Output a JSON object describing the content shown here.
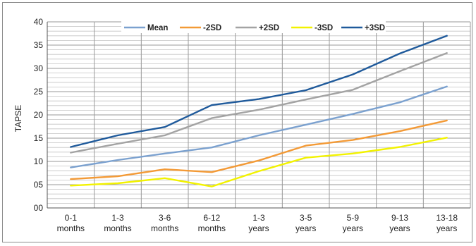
{
  "chart_data": {
    "type": "line",
    "title": "",
    "xlabel": "",
    "ylabel": "TAPSE",
    "ylim": [
      0,
      40
    ],
    "y_ticks": [
      "00",
      "05",
      "10",
      "15",
      "20",
      "25",
      "30",
      "35",
      "40"
    ],
    "y_tick_values": [
      0,
      5,
      10,
      15,
      20,
      25,
      30,
      35,
      40
    ],
    "grid": true,
    "minor_grid_step": 1,
    "legend": "top",
    "categories": [
      [
        "0-1",
        "months"
      ],
      [
        "1-3",
        "months"
      ],
      [
        "3-6",
        "months"
      ],
      [
        "6-12",
        "months"
      ],
      [
        "1-3",
        "years"
      ],
      [
        "3-5",
        "years"
      ],
      [
        "5-9",
        "years"
      ],
      [
        "9-13",
        "years"
      ],
      [
        "13-18",
        "years"
      ]
    ],
    "series": [
      {
        "name": "Mean",
        "color": "#7ba1cf",
        "values": [
          8.7,
          10.3,
          11.7,
          13.0,
          15.6,
          17.9,
          20.2,
          22.7,
          26.1
        ]
      },
      {
        "name": "-2SD",
        "color": "#f39a36",
        "values": [
          6.2,
          6.8,
          8.3,
          7.7,
          10.2,
          13.4,
          14.6,
          16.5,
          18.8
        ]
      },
      {
        "name": "+2SD",
        "color": "#a3a3a3",
        "values": [
          11.9,
          13.8,
          15.6,
          19.3,
          21.1,
          23.3,
          25.4,
          29.4,
          33.3
        ]
      },
      {
        "name": "-3SD",
        "color": "#f2f200",
        "values": [
          4.8,
          5.3,
          6.4,
          4.6,
          7.9,
          10.8,
          11.7,
          13.1,
          15.1
        ]
      },
      {
        "name": "+3SD",
        "color": "#1f5a9b",
        "values": [
          13.1,
          15.6,
          17.4,
          22.1,
          23.4,
          25.3,
          28.7,
          33.2,
          37.0
        ]
      }
    ]
  }
}
